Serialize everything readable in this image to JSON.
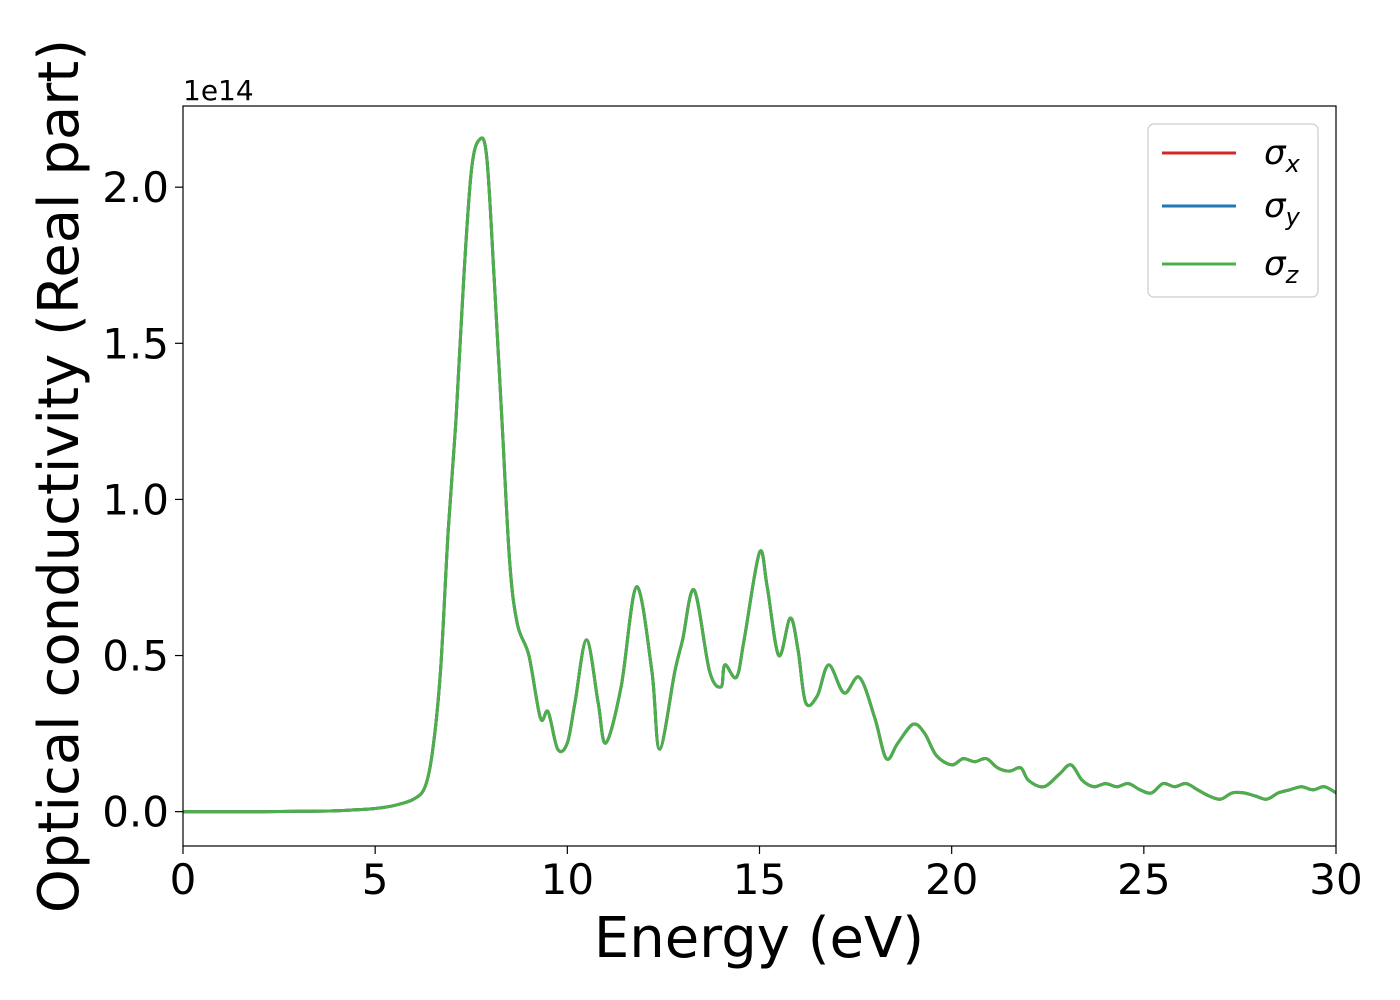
{
  "chart_data": {
    "type": "line",
    "xlabel": "Energy (eV)",
    "ylabel": "Optical conductivity (Real part)",
    "offset_text": "1e14",
    "xlim": [
      0,
      30
    ],
    "ylim": [
      -0.11,
      2.26
    ],
    "xticks": [
      0,
      5,
      10,
      15,
      20,
      25,
      30
    ],
    "xtick_labels": [
      "0",
      "5",
      "10",
      "15",
      "20",
      "25",
      "30"
    ],
    "yticks": [
      0.0,
      0.5,
      1.0,
      1.5,
      2.0
    ],
    "ytick_labels": [
      "0.0",
      "0.5",
      "1.0",
      "1.5",
      "2.0"
    ],
    "grid": false,
    "legend_placement": "top-right",
    "legend": [
      {
        "symbol": "σ",
        "subscript": "x",
        "color": "#d62728"
      },
      {
        "symbol": "σ",
        "subscript": "y",
        "color": "#1f77b4"
      },
      {
        "symbol": "σ",
        "subscript": "z",
        "color": "#4daf4a"
      }
    ],
    "x": [
      0,
      1,
      2,
      3,
      4,
      4.5,
      5,
      5.5,
      6,
      6.3,
      6.5,
      6.7,
      6.9,
      7.1,
      7.3,
      7.5,
      7.7,
      7.9,
      8.1,
      8.3,
      8.5,
      8.7,
      9.0,
      9.3,
      9.5,
      9.75,
      10.0,
      10.2,
      10.5,
      10.8,
      11.0,
      11.4,
      11.8,
      12.2,
      12.4,
      12.8,
      13.0,
      13.3,
      13.7,
      14.0,
      14.1,
      14.4,
      14.6,
      15.0,
      15.2,
      15.5,
      15.8,
      16.0,
      16.2,
      16.5,
      16.8,
      17.2,
      17.6,
      18.0,
      18.3,
      18.6,
      19.0,
      19.3,
      19.6,
      20.0,
      20.3,
      20.6,
      20.9,
      21.2,
      21.5,
      21.8,
      22.0,
      22.4,
      22.8,
      23.1,
      23.4,
      23.7,
      24.0,
      24.3,
      24.6,
      24.9,
      25.2,
      25.5,
      25.8,
      26.1,
      26.4,
      26.7,
      27.0,
      27.3,
      27.6,
      27.9,
      28.2,
      28.5,
      28.8,
      29.1,
      29.4,
      29.7,
      30.0
    ],
    "series": [
      {
        "values": [
          0.0,
          0.0,
          0.0,
          0.001,
          0.003,
          0.006,
          0.01,
          0.02,
          0.04,
          0.08,
          0.2,
          0.45,
          0.9,
          1.25,
          1.7,
          2.05,
          2.15,
          2.1,
          1.7,
          1.25,
          0.8,
          0.6,
          0.5,
          0.3,
          0.32,
          0.2,
          0.22,
          0.35,
          0.55,
          0.35,
          0.22,
          0.4,
          0.72,
          0.45,
          0.2,
          0.45,
          0.55,
          0.71,
          0.45,
          0.4,
          0.47,
          0.43,
          0.55,
          0.83,
          0.72,
          0.5,
          0.62,
          0.52,
          0.35,
          0.37,
          0.47,
          0.38,
          0.43,
          0.3,
          0.17,
          0.22,
          0.28,
          0.25,
          0.18,
          0.15,
          0.17,
          0.16,
          0.17,
          0.14,
          0.13,
          0.14,
          0.1,
          0.08,
          0.12,
          0.15,
          0.1,
          0.08,
          0.09,
          0.08,
          0.09,
          0.07,
          0.06,
          0.09,
          0.08,
          0.09,
          0.07,
          0.05,
          0.04,
          0.06,
          0.06,
          0.05,
          0.04,
          0.06,
          0.07,
          0.08,
          0.07,
          0.08,
          0.06
        ]
      },
      {
        "values": [
          0.0,
          0.0,
          0.0,
          0.001,
          0.003,
          0.006,
          0.01,
          0.02,
          0.04,
          0.08,
          0.2,
          0.45,
          0.9,
          1.25,
          1.7,
          2.05,
          2.15,
          2.1,
          1.7,
          1.25,
          0.8,
          0.6,
          0.5,
          0.3,
          0.32,
          0.2,
          0.22,
          0.35,
          0.55,
          0.35,
          0.22,
          0.4,
          0.72,
          0.45,
          0.2,
          0.45,
          0.55,
          0.71,
          0.45,
          0.4,
          0.47,
          0.43,
          0.55,
          0.83,
          0.72,
          0.5,
          0.62,
          0.52,
          0.35,
          0.37,
          0.47,
          0.38,
          0.43,
          0.3,
          0.17,
          0.22,
          0.28,
          0.25,
          0.18,
          0.15,
          0.17,
          0.16,
          0.17,
          0.14,
          0.13,
          0.14,
          0.1,
          0.08,
          0.12,
          0.15,
          0.1,
          0.08,
          0.09,
          0.08,
          0.09,
          0.07,
          0.06,
          0.09,
          0.08,
          0.09,
          0.07,
          0.05,
          0.04,
          0.06,
          0.06,
          0.05,
          0.04,
          0.06,
          0.07,
          0.08,
          0.07,
          0.08,
          0.06
        ]
      },
      {
        "values": [
          0.0,
          0.0,
          0.0,
          0.001,
          0.003,
          0.006,
          0.01,
          0.02,
          0.04,
          0.08,
          0.2,
          0.45,
          0.9,
          1.25,
          1.7,
          2.05,
          2.15,
          2.1,
          1.7,
          1.25,
          0.8,
          0.6,
          0.5,
          0.3,
          0.32,
          0.2,
          0.22,
          0.35,
          0.55,
          0.35,
          0.22,
          0.4,
          0.72,
          0.45,
          0.2,
          0.45,
          0.55,
          0.71,
          0.45,
          0.4,
          0.47,
          0.43,
          0.55,
          0.83,
          0.72,
          0.5,
          0.62,
          0.52,
          0.35,
          0.37,
          0.47,
          0.38,
          0.43,
          0.3,
          0.17,
          0.22,
          0.28,
          0.25,
          0.18,
          0.15,
          0.17,
          0.16,
          0.17,
          0.14,
          0.13,
          0.14,
          0.1,
          0.08,
          0.12,
          0.15,
          0.1,
          0.08,
          0.09,
          0.08,
          0.09,
          0.07,
          0.06,
          0.09,
          0.08,
          0.09,
          0.07,
          0.05,
          0.04,
          0.06,
          0.06,
          0.05,
          0.04,
          0.06,
          0.07,
          0.08,
          0.07,
          0.08,
          0.06
        ]
      }
    ]
  }
}
